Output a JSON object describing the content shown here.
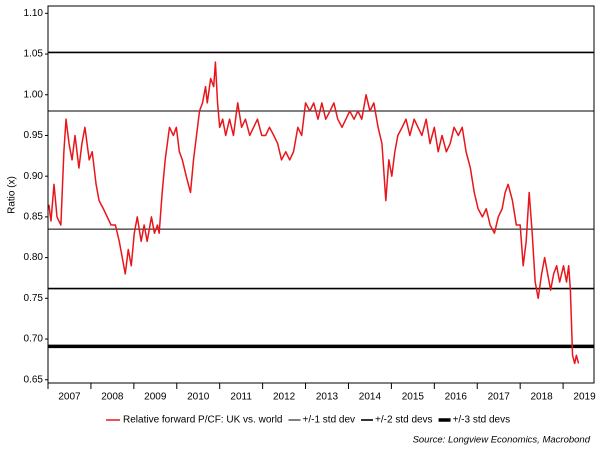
{
  "chart_data": {
    "type": "line",
    "y_label": "Ratio (x)",
    "source": "Source: Longview Economics, Macrobond",
    "xlim": [
      2007.0,
      2019.72
    ],
    "xticks": [
      2007,
      2008,
      2009,
      2010,
      2011,
      2012,
      2013,
      2014,
      2015,
      2016,
      2017,
      2018,
      2019
    ],
    "ylim": [
      0.646,
      1.109
    ],
    "yticks": [
      0.65,
      {
        "value": 0.7,
        "label": "0.70"
      },
      0.75,
      {
        "value": 0.8,
        "label": "0.80"
      },
      0.85,
      {
        "value": 0.9,
        "label": "0.90"
      },
      0.95,
      {
        "value": 1.0,
        "label": "1.00"
      },
      1.05,
      {
        "value": 1.1,
        "label": "1.10"
      }
    ],
    "x": [
      2007.02,
      2007.07,
      2007.14,
      2007.21,
      2007.3,
      2007.37,
      2007.42,
      2007.49,
      2007.56,
      2007.63,
      2007.72,
      2007.79,
      2007.86,
      2007.96,
      2008.03,
      2008.12,
      2008.19,
      2008.29,
      2008.38,
      2008.47,
      2008.57,
      2008.66,
      2008.73,
      2008.8,
      2008.87,
      2008.94,
      2009.01,
      2009.08,
      2009.17,
      2009.24,
      2009.31,
      2009.41,
      2009.48,
      2009.55,
      2009.59,
      2009.66,
      2009.73,
      2009.83,
      2009.92,
      2009.99,
      2010.06,
      2010.13,
      2010.22,
      2010.32,
      2010.39,
      2010.46,
      2010.53,
      2010.6,
      2010.67,
      2010.71,
      2010.79,
      2010.86,
      2010.9,
      2010.95,
      2011.0,
      2011.07,
      2011.14,
      2011.23,
      2011.32,
      2011.42,
      2011.51,
      2011.6,
      2011.7,
      2011.79,
      2011.88,
      2011.98,
      2012.07,
      2012.16,
      2012.26,
      2012.35,
      2012.44,
      2012.54,
      2012.63,
      2012.72,
      2012.82,
      2012.91,
      2013.0,
      2013.1,
      2013.19,
      2013.29,
      2013.38,
      2013.47,
      2013.57,
      2013.66,
      2013.75,
      2013.85,
      2013.94,
      2014.03,
      2014.13,
      2014.22,
      2014.31,
      2014.41,
      2014.5,
      2014.59,
      2014.69,
      2014.78,
      2014.87,
      2014.94,
      2015.01,
      2015.08,
      2015.15,
      2015.25,
      2015.34,
      2015.43,
      2015.53,
      2015.62,
      2015.71,
      2015.81,
      2015.9,
      2016.0,
      2016.09,
      2016.18,
      2016.28,
      2016.37,
      2016.46,
      2016.56,
      2016.65,
      2016.74,
      2016.84,
      2016.93,
      2017.02,
      2017.12,
      2017.21,
      2017.3,
      2017.4,
      2017.49,
      2017.58,
      2017.65,
      2017.72,
      2017.82,
      2017.91,
      2018.0,
      2018.07,
      2018.14,
      2018.21,
      2018.28,
      2018.35,
      2018.42,
      2018.5,
      2018.57,
      2018.64,
      2018.71,
      2018.78,
      2018.85,
      2018.92,
      2019.01,
      2019.08,
      2019.13,
      2019.17,
      2019.22,
      2019.27,
      2019.31,
      2019.36
    ],
    "series": [
      {
        "name": "Relative forward P/CF: UK vs. world",
        "color": "#e8161b",
        "values": [
          0.865,
          0.845,
          0.89,
          0.85,
          0.84,
          0.93,
          0.97,
          0.94,
          0.92,
          0.95,
          0.91,
          0.94,
          0.96,
          0.92,
          0.93,
          0.89,
          0.87,
          0.86,
          0.85,
          0.84,
          0.84,
          0.82,
          0.8,
          0.78,
          0.81,
          0.79,
          0.83,
          0.85,
          0.82,
          0.84,
          0.82,
          0.85,
          0.83,
          0.84,
          0.83,
          0.88,
          0.92,
          0.96,
          0.95,
          0.96,
          0.93,
          0.92,
          0.9,
          0.88,
          0.92,
          0.95,
          0.98,
          0.99,
          1.01,
          0.99,
          1.02,
          1.01,
          1.04,
          0.99,
          0.96,
          0.97,
          0.95,
          0.97,
          0.95,
          0.99,
          0.96,
          0.97,
          0.95,
          0.96,
          0.97,
          0.95,
          0.95,
          0.96,
          0.95,
          0.94,
          0.92,
          0.93,
          0.92,
          0.93,
          0.96,
          0.95,
          0.99,
          0.98,
          0.99,
          0.97,
          0.99,
          0.97,
          0.98,
          0.99,
          0.97,
          0.96,
          0.97,
          0.98,
          0.97,
          0.98,
          0.97,
          1.0,
          0.98,
          0.99,
          0.96,
          0.94,
          0.87,
          0.92,
          0.9,
          0.93,
          0.95,
          0.96,
          0.97,
          0.95,
          0.97,
          0.96,
          0.95,
          0.97,
          0.94,
          0.96,
          0.93,
          0.95,
          0.93,
          0.94,
          0.96,
          0.95,
          0.96,
          0.93,
          0.91,
          0.88,
          0.86,
          0.85,
          0.86,
          0.84,
          0.83,
          0.85,
          0.86,
          0.88,
          0.89,
          0.87,
          0.84,
          0.84,
          0.79,
          0.82,
          0.88,
          0.83,
          0.77,
          0.75,
          0.78,
          0.8,
          0.78,
          0.76,
          0.78,
          0.79,
          0.77,
          0.79,
          0.77,
          0.79,
          0.76,
          0.68,
          0.67,
          0.68,
          0.67
        ]
      }
    ],
    "reference_lines": [
      {
        "name": "+/-1 std dev",
        "color": "#000000",
        "line_width": 1,
        "values": [
          0.98,
          0.835
        ]
      },
      {
        "name": "+/-2 std devs",
        "color": "#000000",
        "line_width": 1.6,
        "values": [
          1.052,
          0.762
        ]
      },
      {
        "name": "+/-3 std devs",
        "color": "#000000",
        "line_width": 3.5,
        "values": [
          0.691
        ]
      }
    ]
  }
}
